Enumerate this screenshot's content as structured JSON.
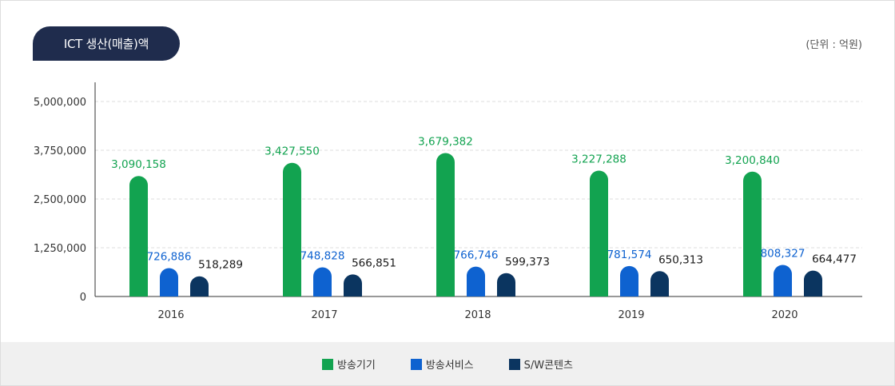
{
  "header": {
    "title": "ICT 생산(매출)액",
    "unit": "(단위 : 억원)"
  },
  "colors": {
    "green": "#12a350",
    "blue": "#0e62d0",
    "navy": "#0b3560",
    "grid": "#dddddd",
    "legend_bg": "#f0f0f0"
  },
  "legend": [
    {
      "label": "방송기기"
    },
    {
      "label": "방송서비스"
    },
    {
      "label": "S/W콘텐츠"
    }
  ],
  "chart_data": {
    "type": "bar",
    "categories": [
      "2016",
      "2017",
      "2018",
      "2019",
      "2020"
    ],
    "series": [
      {
        "name": "방송기기",
        "values": [
          3090158,
          3427550,
          3679382,
          3227288,
          3200840
        ],
        "labels": [
          "3,090,158",
          "3,427,550",
          "3,679,382",
          "3,227,288",
          "3,200,840"
        ]
      },
      {
        "name": "방송서비스",
        "values": [
          726886,
          748828,
          766746,
          781574,
          808327
        ],
        "labels": [
          "726,886",
          "748,828",
          "766,746",
          "781,574",
          "808,327"
        ]
      },
      {
        "name": "S/W콘텐츠",
        "values": [
          518289,
          566851,
          599373,
          650313,
          664477
        ],
        "labels": [
          "518,289",
          "566,851",
          "599,373",
          "650,313",
          "664,477"
        ]
      }
    ],
    "yticks": [
      0,
      1250000,
      2500000,
      3750000,
      5000000
    ],
    "ytick_labels": [
      "0",
      "1,250,000",
      "2,500,000",
      "3,750,000",
      "5,000,000"
    ],
    "ylim": [
      0,
      5000000
    ],
    "grid": true,
    "legend_position": "bottom"
  }
}
